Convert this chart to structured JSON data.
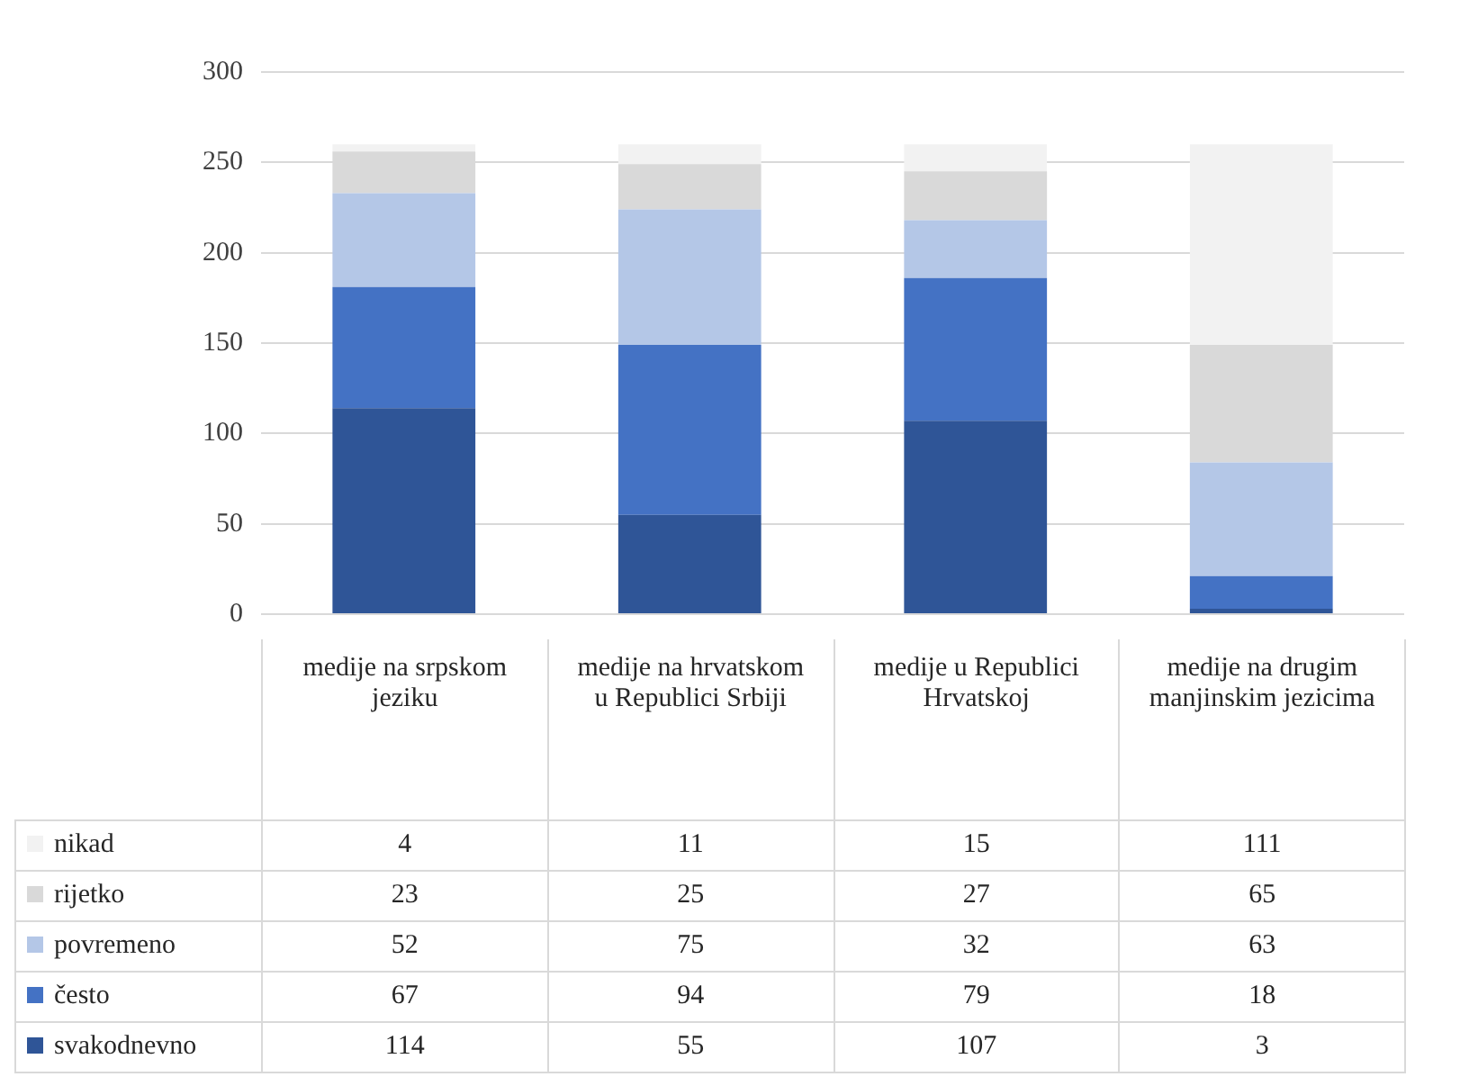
{
  "chart_data": {
    "type": "bar",
    "stacked": true,
    "categories": [
      "medije na srpskom jeziku",
      "medije na hrvatskom u Republici Srbiji",
      "medije u Republici Hrvatskoj",
      "medije na drugim manjinskim jezicima"
    ],
    "series": [
      {
        "name": "svakodnevno",
        "color": "#2f5597",
        "values": [
          114,
          55,
          107,
          3
        ]
      },
      {
        "name": "često",
        "color": "#4472c4",
        "values": [
          67,
          94,
          79,
          18
        ]
      },
      {
        "name": "povremeno",
        "color": "#b4c7e7",
        "values": [
          52,
          75,
          32,
          63
        ]
      },
      {
        "name": "rijetko",
        "color": "#d9d9d9",
        "values": [
          23,
          25,
          27,
          65
        ]
      },
      {
        "name": "nikad",
        "color": "#f2f2f2",
        "values": [
          4,
          11,
          15,
          111
        ]
      }
    ],
    "ylim": [
      0,
      300
    ],
    "yticks": [
      0,
      50,
      100,
      150,
      200,
      250,
      300
    ],
    "grid": "y",
    "legend": "bottom",
    "data_labels": true
  }
}
